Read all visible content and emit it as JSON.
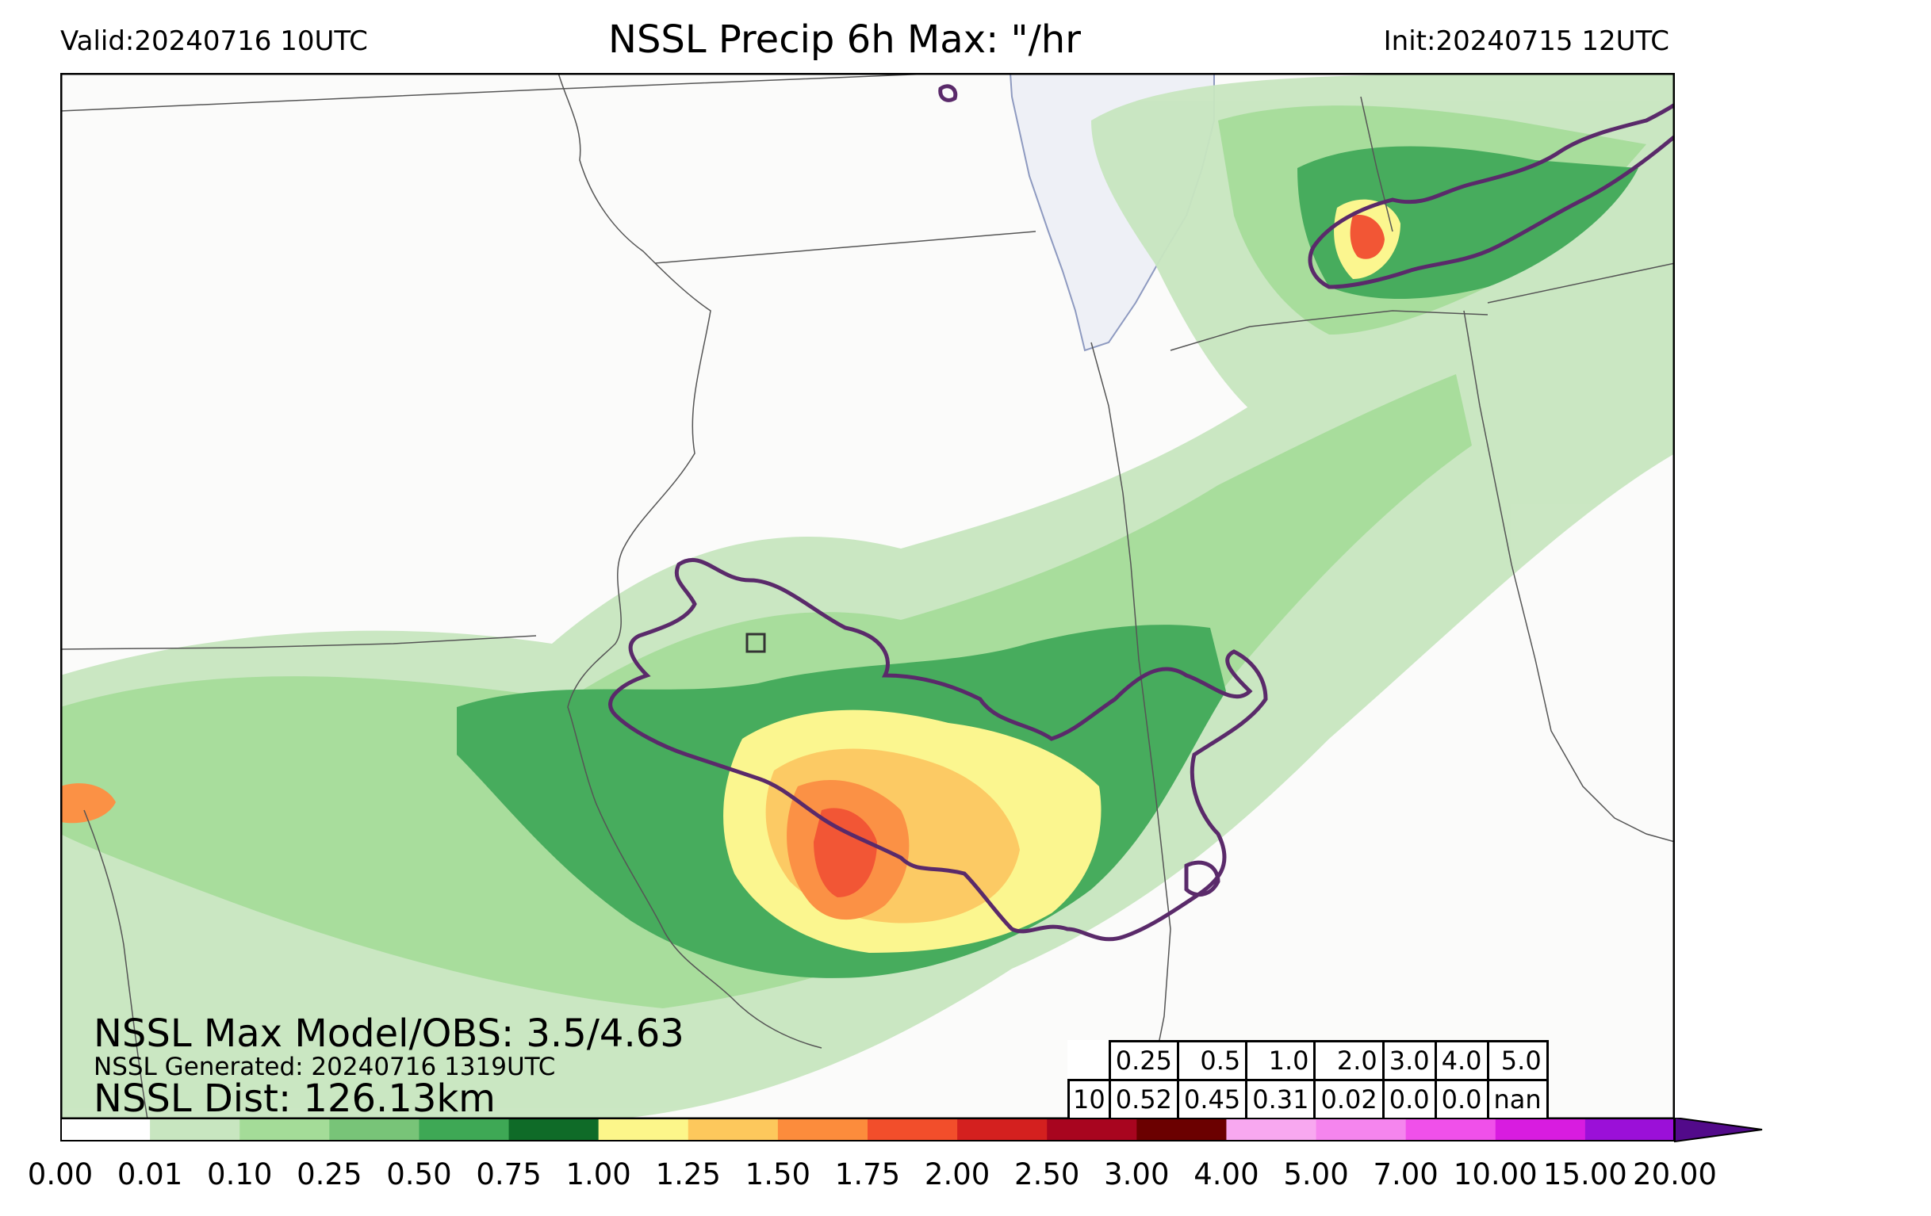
{
  "header": {
    "valid": "Valid:20240716 10UTC",
    "title": "NSSL Precip 6h Max: \"/hr",
    "init": "Init:20240715 12UTC"
  },
  "stats": {
    "max_model_obs": "NSSL Max Model/OBS: 3.5/4.63",
    "generated": "NSSL Generated: 20240716 1319UTC",
    "distance": "NSSL Dist: 126.13km"
  },
  "threshold_table": {
    "row_label": "10",
    "thresholds": [
      "0.25",
      "0.5",
      "1.0",
      "2.0",
      "3.0",
      "4.0",
      "5.0"
    ],
    "values": [
      "0.52",
      "0.45",
      "0.31",
      "0.02",
      "0.0",
      "0.0",
      "nan"
    ]
  },
  "colorbar": {
    "ticks": [
      "0.00",
      "0.01",
      "0.10",
      "0.25",
      "0.50",
      "0.75",
      "1.00",
      "1.25",
      "1.50",
      "1.75",
      "2.00",
      "2.50",
      "3.00",
      "4.00",
      "5.00",
      "7.00",
      "10.00",
      "15.00",
      "20.00"
    ],
    "colors": [
      "#ffffff",
      "#c8e6c0",
      "#a4dc98",
      "#78c478",
      "#3ea855",
      "#0f6b28",
      "#fcf68a",
      "#fdc85c",
      "#fc8c3c",
      "#f24e2b",
      "#d4201f",
      "#a8051f",
      "#6b0000",
      "#f8a8f0",
      "#f585ee",
      "#f050ea",
      "#d81ce0",
      "#9b10d8"
    ],
    "extend_color": "#520a8a"
  },
  "map_colors": {
    "land": "#fbfbfa",
    "water": "#eef0f6",
    "borders": "#555555",
    "obs_contour": "#5a2a6a",
    "frame": "#000000"
  }
}
